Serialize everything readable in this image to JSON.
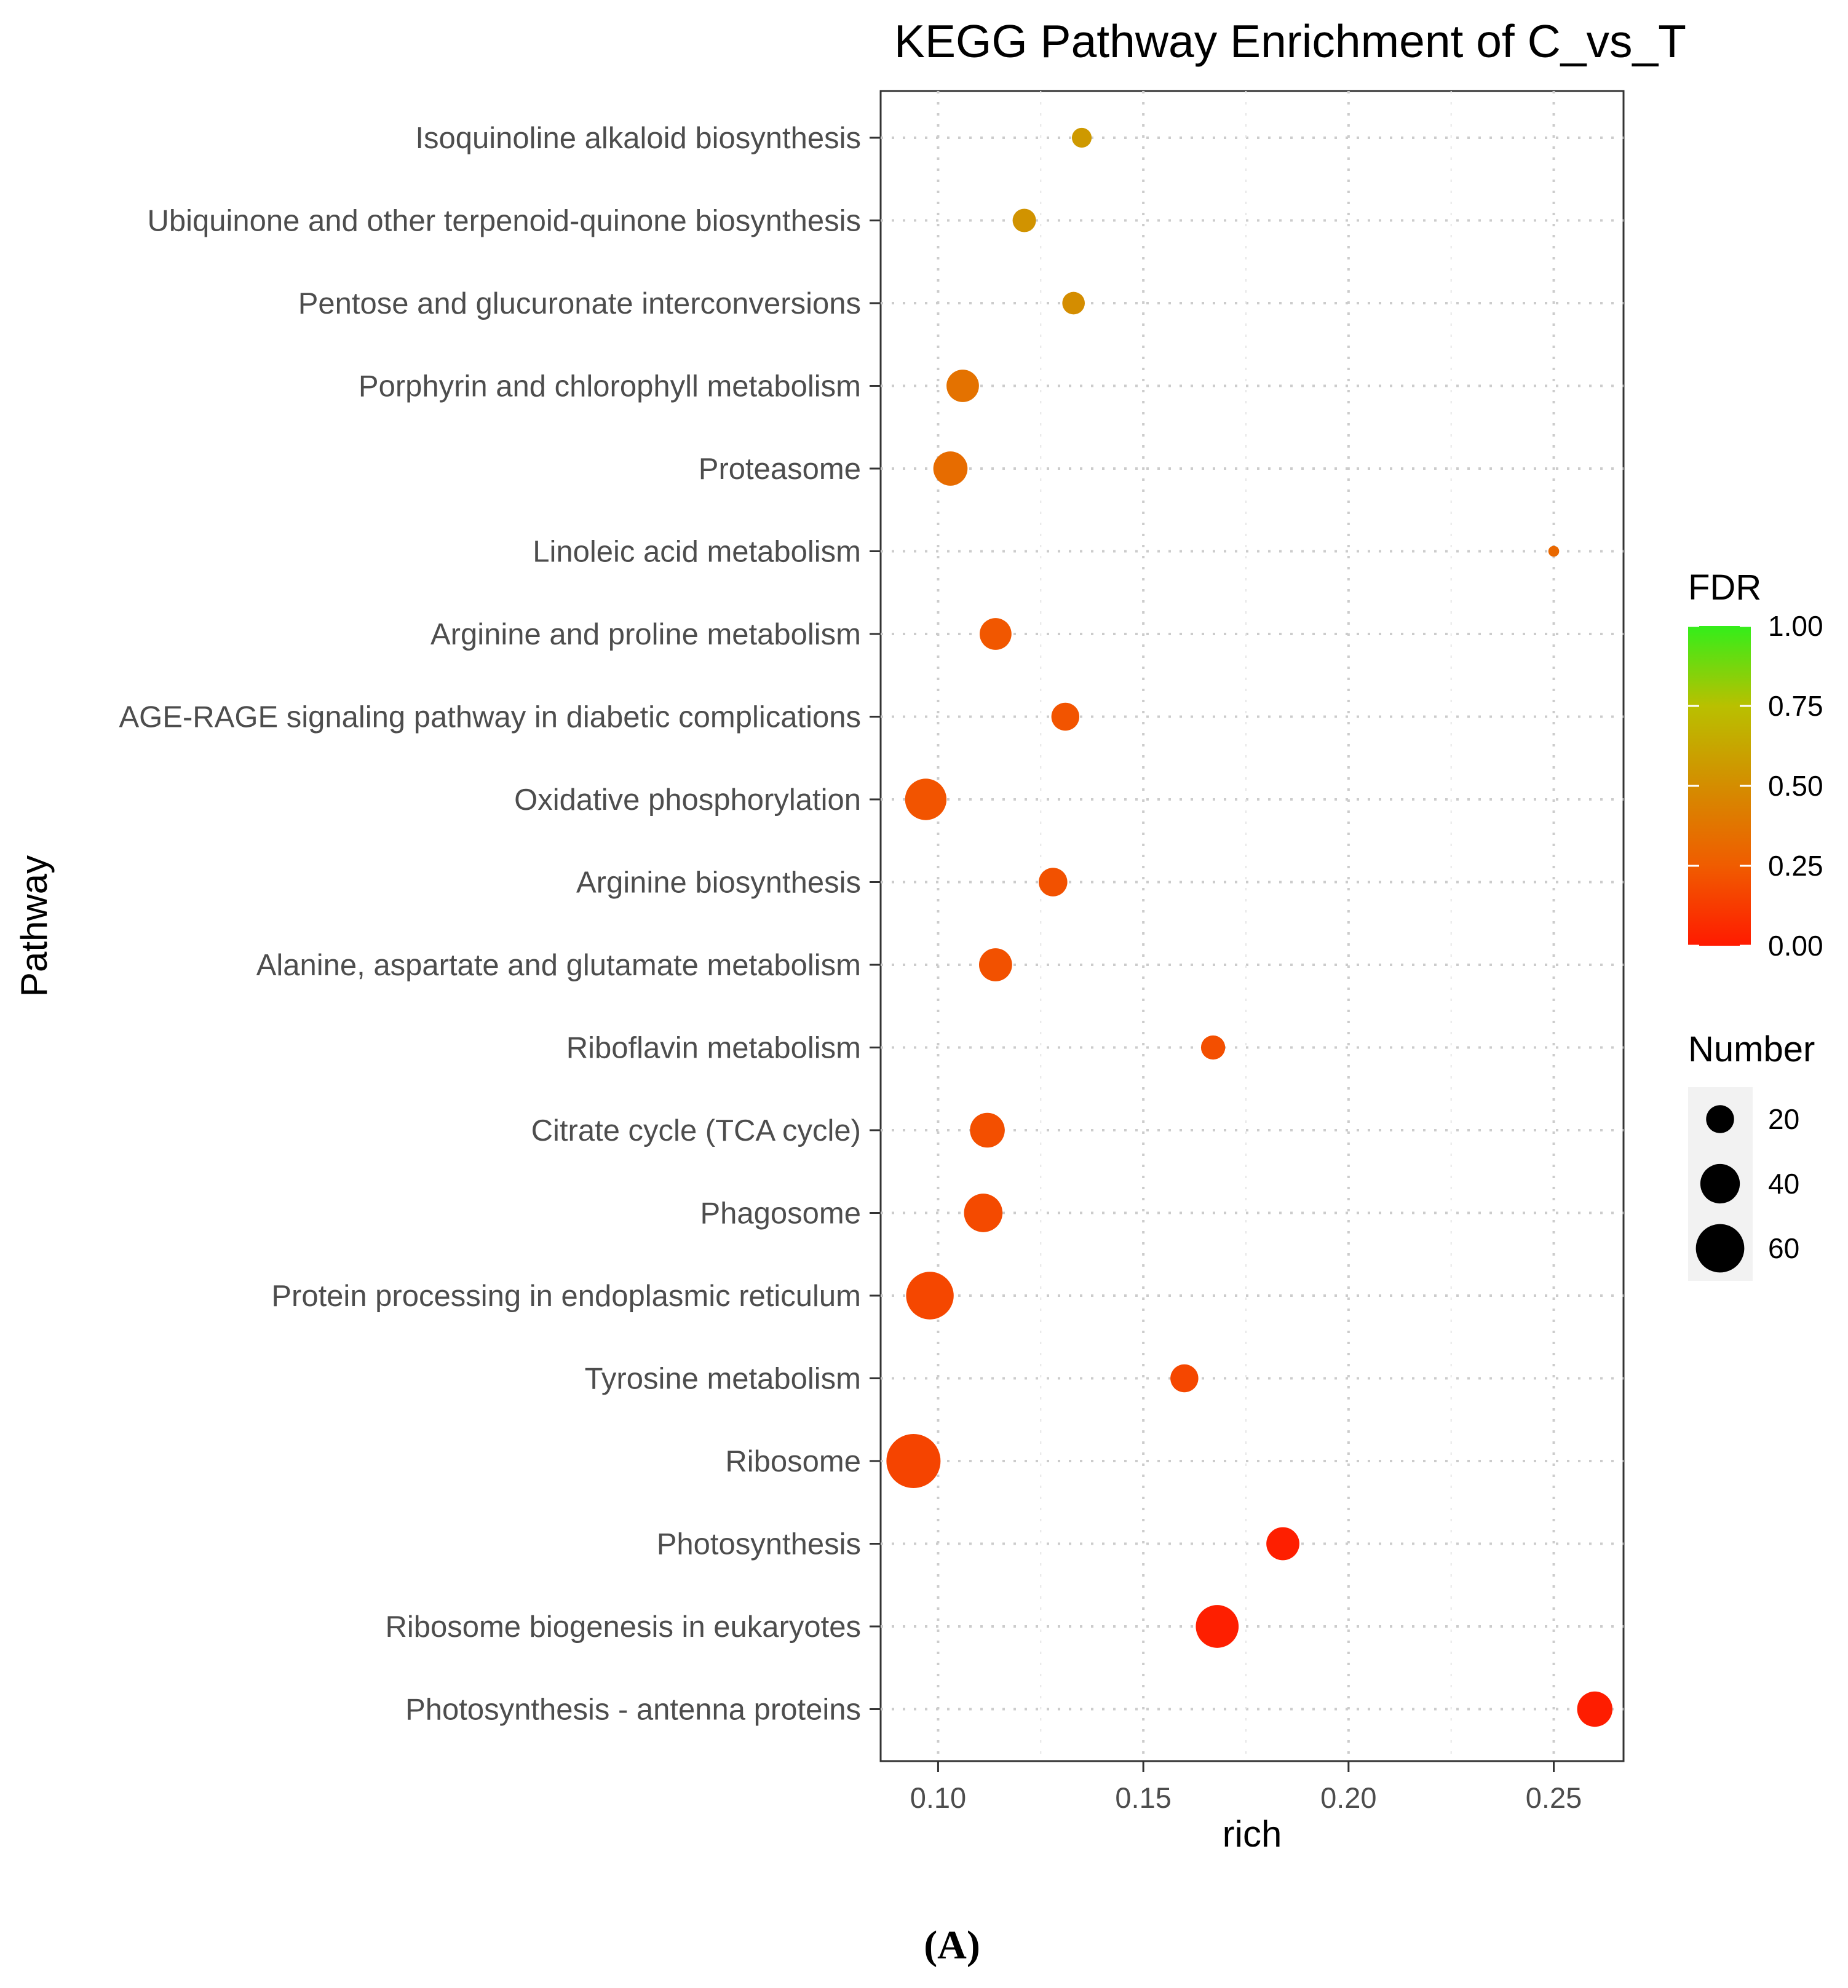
{
  "chart_data": {
    "type": "scatter",
    "title": "KEGG Pathway Enrichment of C_vs_T",
    "xlabel": "rich",
    "ylabel": "Pathway",
    "xlim": [
      0.086,
      0.267
    ],
    "x_ticks": [
      "0.10",
      "0.15",
      "0.20",
      "0.25"
    ],
    "x_tick_values": [
      0.1,
      0.15,
      0.2,
      0.25
    ],
    "grid": true,
    "legend_position": "right",
    "categories": [
      "Isoquinoline alkaloid biosynthesis",
      "Ubiquinone and other terpenoid-quinone biosynthesis",
      "Pentose and glucuronate interconversions",
      "Porphyrin and chlorophyll metabolism",
      "Proteasome",
      "Linoleic acid metabolism",
      "Arginine and proline metabolism",
      "AGE-RAGE signaling pathway in diabetic complications",
      "Oxidative phosphorylation",
      "Arginine biosynthesis",
      "Alanine, aspartate and glutamate metabolism",
      "Riboflavin metabolism",
      "Citrate cycle (TCA cycle)",
      "Phagosome",
      "Protein processing in endoplasmic reticulum",
      "Tyrosine metabolism",
      "Ribosome",
      "Photosynthesis",
      "Ribosome biogenesis in eukaryotes",
      "Photosynthesis - antenna proteins"
    ],
    "points": [
      {
        "pathway": "Isoquinoline alkaloid biosynthesis",
        "rich": 0.135,
        "fdr": 0.56,
        "number": 10
      },
      {
        "pathway": "Ubiquinone and other terpenoid-quinone biosynthesis",
        "rich": 0.121,
        "fdr": 0.53,
        "number": 14
      },
      {
        "pathway": "Pentose and glucuronate interconversions",
        "rich": 0.133,
        "fdr": 0.5,
        "number": 13
      },
      {
        "pathway": "Porphyrin and chlorophyll metabolism",
        "rich": 0.106,
        "fdr": 0.36,
        "number": 27
      },
      {
        "pathway": "Proteasome",
        "rich": 0.103,
        "fdr": 0.33,
        "number": 30
      },
      {
        "pathway": "Linoleic acid metabolism",
        "rich": 0.25,
        "fdr": 0.31,
        "number": 3
      },
      {
        "pathway": "Arginine and proline metabolism",
        "rich": 0.114,
        "fdr": 0.23,
        "number": 26
      },
      {
        "pathway": "AGE-RAGE signaling pathway in diabetic complications",
        "rich": 0.131,
        "fdr": 0.22,
        "number": 20
      },
      {
        "pathway": "Oxidative phosphorylation",
        "rich": 0.097,
        "fdr": 0.22,
        "number": 44
      },
      {
        "pathway": "Arginine biosynthesis",
        "rich": 0.128,
        "fdr": 0.21,
        "number": 21
      },
      {
        "pathway": "Alanine, aspartate and glutamate metabolism",
        "rich": 0.114,
        "fdr": 0.21,
        "number": 28
      },
      {
        "pathway": "Riboflavin metabolism",
        "rich": 0.167,
        "fdr": 0.2,
        "number": 15
      },
      {
        "pathway": "Citrate cycle (TCA cycle)",
        "rich": 0.112,
        "fdr": 0.2,
        "number": 31
      },
      {
        "pathway": "Phagosome",
        "rich": 0.111,
        "fdr": 0.18,
        "number": 38
      },
      {
        "pathway": "Protein processing in endoplasmic reticulum",
        "rich": 0.098,
        "fdr": 0.17,
        "number": 58
      },
      {
        "pathway": "Tyrosine metabolism",
        "rich": 0.16,
        "fdr": 0.17,
        "number": 20
      },
      {
        "pathway": "Ribosome",
        "rich": 0.094,
        "fdr": 0.16,
        "number": 75
      },
      {
        "pathway": "Photosynthesis",
        "rich": 0.184,
        "fdr": 0.02,
        "number": 28
      },
      {
        "pathway": "Ribosome biogenesis in eukaryotes",
        "rich": 0.168,
        "fdr": 0.02,
        "number": 47
      },
      {
        "pathway": "Photosynthesis - antenna proteins",
        "rich": 0.26,
        "fdr": 0.01,
        "number": 32
      }
    ],
    "legend_fdr": {
      "title": "FDR",
      "labels": [
        "1.00",
        "0.75",
        "0.50",
        "0.25",
        "0.00"
      ],
      "values": [
        1.0,
        0.75,
        0.5,
        0.25,
        0.0
      ],
      "colors": [
        "#33ee1a",
        "#b9c000",
        "#d48d00",
        "#f05c00",
        "#ff1a00"
      ]
    },
    "legend_number": {
      "title": "Number",
      "labels": [
        "20",
        "40",
        "60"
      ],
      "values": [
        20,
        40,
        60
      ]
    }
  },
  "caption": "(A)"
}
